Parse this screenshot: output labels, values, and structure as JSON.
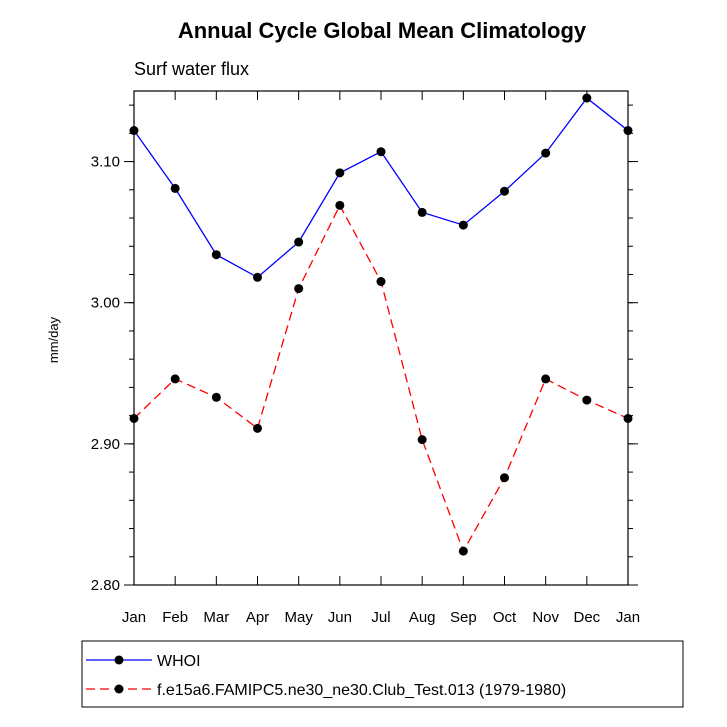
{
  "chart_data": {
    "type": "line",
    "title": "Annual Cycle Global Mean Climatology",
    "subtitle": "Surf water flux",
    "xlabel": "",
    "ylabel": "mm/day",
    "categories": [
      "Jan",
      "Feb",
      "Mar",
      "Apr",
      "May",
      "Jun",
      "Jul",
      "Aug",
      "Sep",
      "Oct",
      "Nov",
      "Dec",
      "Jan"
    ],
    "ylim": [
      2.8,
      3.15
    ],
    "yticks": [
      {
        "value": 2.8,
        "label": "2.80"
      },
      {
        "value": 2.9,
        "label": "2.90"
      },
      {
        "value": 3.0,
        "label": "3.00"
      },
      {
        "value": 3.1,
        "label": "3.10"
      }
    ],
    "series": [
      {
        "name": "WHOI",
        "color": "#0000ff",
        "dash": "solid",
        "values": [
          3.122,
          3.081,
          3.034,
          3.018,
          3.043,
          3.092,
          3.107,
          3.064,
          3.055,
          3.079,
          3.106,
          3.145,
          3.122
        ]
      },
      {
        "name": "f.e15a6.FAMIPC5.ne30_ne30.Club_Test.013 (1979-1980)",
        "color": "#ff0000",
        "dash": "dashed",
        "values": [
          2.918,
          2.946,
          2.933,
          2.911,
          3.01,
          3.069,
          3.015,
          2.903,
          2.824,
          2.876,
          2.946,
          2.931,
          2.918
        ]
      }
    ],
    "legend_position": "bottom"
  }
}
